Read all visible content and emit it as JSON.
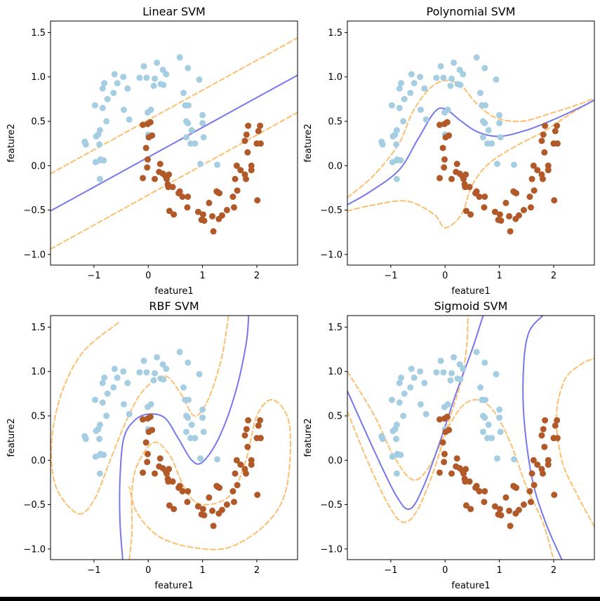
{
  "figure": {
    "colors": {
      "class0": "#a6cee3",
      "class1": "#b15928",
      "boundary": "#7777ee",
      "margin": "#fdbf6f"
    }
  },
  "chart_data": [
    {
      "type": "scatter",
      "title": "Linear SVM",
      "xlabel": "feature1",
      "ylabel": "feature2",
      "xlim": [
        -1.8,
        2.75
      ],
      "ylim": [
        -1.12,
        1.63
      ],
      "xticks": [
        -1,
        0,
        1,
        2
      ],
      "yticks": [
        -1.0,
        -0.5,
        0.0,
        0.5,
        1.0,
        1.5
      ],
      "xtick_labels": [
        "−1",
        "0",
        "1",
        "2"
      ],
      "ytick_labels": [
        "−1.0",
        "−0.5",
        "0.0",
        "0.5",
        "1.0",
        "1.5"
      ],
      "grid": false,
      "boundary": [
        [
          -1.8,
          -0.51
        ],
        [
          2.75,
          1.02
        ]
      ],
      "margins": [
        [
          [
            -1.8,
            -0.09
          ],
          [
            2.75,
            1.44
          ]
        ],
        [
          [
            -1.8,
            -0.94
          ],
          [
            2.75,
            0.6
          ]
        ]
      ]
    },
    {
      "type": "scatter",
      "title": "Polynomial SVM",
      "xlabel": "feature1",
      "ylabel": "feature2",
      "xlim": [
        -1.8,
        2.75
      ],
      "ylim": [
        -1.12,
        1.63
      ],
      "xticks": [
        -1,
        0,
        1,
        2
      ],
      "yticks": [
        -1.0,
        -0.5,
        0.0,
        0.5,
        1.0,
        1.5
      ],
      "xtick_labels": [
        "−1",
        "0",
        "1",
        "2"
      ],
      "ytick_labels": [
        "−1.0",
        "−0.5",
        "0.0",
        "0.5",
        "1.0",
        "1.5"
      ],
      "grid": false,
      "boundary": [
        [
          -1.8,
          -0.44
        ],
        [
          -1.4,
          -0.3
        ],
        [
          -0.85,
          -0.05
        ],
        [
          -0.5,
          0.3
        ],
        [
          -0.2,
          0.6
        ],
        [
          0.0,
          0.64
        ],
        [
          0.3,
          0.5
        ],
        [
          0.6,
          0.38
        ],
        [
          1.0,
          0.33
        ],
        [
          1.5,
          0.4
        ],
        [
          2.0,
          0.52
        ],
        [
          2.5,
          0.66
        ],
        [
          2.75,
          0.74
        ]
      ],
      "margins": [
        [
          [
            -1.8,
            -0.36
          ],
          [
            -1.3,
            -0.1
          ],
          [
            -0.85,
            0.25
          ],
          [
            -0.6,
            0.6
          ],
          [
            -0.3,
            0.86
          ],
          [
            0.0,
            0.96
          ],
          [
            0.3,
            0.9
          ],
          [
            0.55,
            0.72
          ],
          [
            0.9,
            0.55
          ],
          [
            1.4,
            0.5
          ],
          [
            2.0,
            0.6
          ],
          [
            2.5,
            0.7
          ],
          [
            2.75,
            0.76
          ]
        ],
        [
          [
            -1.8,
            -0.51
          ],
          [
            -1.3,
            -0.44
          ],
          [
            -0.7,
            -0.4
          ],
          [
            -0.2,
            -0.55
          ],
          [
            0.0,
            -0.7
          ],
          [
            0.3,
            -0.55
          ],
          [
            0.5,
            -0.22
          ],
          [
            0.8,
            0.02
          ],
          [
            1.3,
            0.22
          ],
          [
            1.8,
            0.38
          ],
          [
            2.3,
            0.58
          ],
          [
            2.75,
            0.74
          ]
        ]
      ]
    },
    {
      "type": "scatter",
      "title": "RBF SVM",
      "xlabel": "feature1",
      "ylabel": "feature2",
      "xlim": [
        -1.8,
        2.75
      ],
      "ylim": [
        -1.12,
        1.63
      ],
      "xticks": [
        -1,
        0,
        1,
        2
      ],
      "yticks": [
        -1.0,
        -0.5,
        0.0,
        0.5,
        1.0,
        1.5
      ],
      "xtick_labels": [
        "−1",
        "0",
        "1",
        "2"
      ],
      "ytick_labels": [
        "−1.0",
        "−0.5",
        "0.0",
        "0.5",
        "1.0",
        "1.5"
      ],
      "grid": false,
      "boundary": [
        [
          -0.47,
          -1.12
        ],
        [
          -0.52,
          -0.7
        ],
        [
          -0.52,
          -0.2
        ],
        [
          -0.45,
          0.25
        ],
        [
          -0.25,
          0.45
        ],
        [
          0.0,
          0.52
        ],
        [
          0.3,
          0.48
        ],
        [
          0.55,
          0.25
        ],
        [
          0.8,
          0.0
        ],
        [
          1.0,
          -0.02
        ],
        [
          1.3,
          0.25
        ],
        [
          1.6,
          0.75
        ],
        [
          1.8,
          1.3
        ],
        [
          1.85,
          1.63
        ]
      ],
      "margins": [
        [
          [
            -0.55,
            1.55
          ],
          [
            -1.2,
            1.22
          ],
          [
            -1.6,
            0.75
          ],
          [
            -1.78,
            0.2
          ],
          [
            -1.7,
            -0.3
          ],
          [
            -1.3,
            -0.6
          ],
          [
            -1.0,
            -0.45
          ],
          [
            -0.7,
            0.0
          ],
          [
            -0.4,
            0.45
          ],
          [
            -0.1,
            0.78
          ],
          [
            0.3,
            0.95
          ],
          [
            0.6,
            0.75
          ],
          [
            0.85,
            0.5
          ],
          [
            1.1,
            0.68
          ],
          [
            1.35,
            1.15
          ],
          [
            1.48,
            1.63
          ]
        ],
        [
          [
            -0.35,
            -1.12
          ],
          [
            -0.3,
            -0.8
          ],
          [
            -0.3,
            -0.35
          ],
          [
            -0.2,
            -0.05
          ],
          [
            0.1,
            0.2
          ],
          [
            0.4,
            0.05
          ],
          [
            0.7,
            -0.35
          ],
          [
            1.0,
            -0.5
          ],
          [
            1.5,
            -0.4
          ],
          [
            1.8,
            0.0
          ],
          [
            2.0,
            0.5
          ],
          [
            2.3,
            0.68
          ],
          [
            2.6,
            0.4
          ],
          [
            2.55,
            -0.3
          ],
          [
            2.2,
            -0.7
          ],
          [
            1.5,
            -0.98
          ],
          [
            0.8,
            -0.98
          ],
          [
            0.2,
            -0.86
          ],
          [
            -0.2,
            -0.6
          ],
          [
            -0.35,
            -0.3
          ]
        ]
      ]
    },
    {
      "type": "scatter",
      "title": "Sigmoid SVM",
      "xlabel": "feature1",
      "ylabel": "feature2",
      "xlim": [
        -1.8,
        2.75
      ],
      "ylim": [
        -1.12,
        1.63
      ],
      "xticks": [
        -1,
        0,
        1,
        2
      ],
      "yticks": [
        -1.0,
        -0.5,
        0.0,
        0.5,
        1.0,
        1.5
      ],
      "xtick_labels": [
        "−1",
        "0",
        "1",
        "2"
      ],
      "ytick_labels": [
        "−1.0",
        "−0.5",
        "0.0",
        "0.5",
        "1.0",
        "1.5"
      ],
      "grid": false,
      "boundary": [
        [
          [
            -1.8,
            0.78
          ],
          [
            -1.3,
            0.1
          ],
          [
            -0.9,
            -0.4
          ],
          [
            -0.65,
            -0.55
          ],
          [
            -0.4,
            -0.3
          ],
          [
            -0.1,
            0.2
          ],
          [
            0.2,
            0.75
          ],
          [
            0.5,
            1.25
          ],
          [
            0.7,
            1.63
          ]
        ],
        [
          [
            1.8,
            1.63
          ],
          [
            1.55,
            1.45
          ],
          [
            1.45,
            1.1
          ],
          [
            1.45,
            0.5
          ],
          [
            1.6,
            -0.2
          ],
          [
            1.85,
            -0.7
          ],
          [
            2.15,
            -1.12
          ]
        ]
      ],
      "margins": [
        [
          [
            -1.8,
            0.55
          ],
          [
            -1.4,
            -0.05
          ],
          [
            -1.0,
            -0.55
          ],
          [
            -0.75,
            -0.7
          ],
          [
            -0.5,
            -0.55
          ],
          [
            -0.2,
            -0.1
          ],
          [
            0.1,
            0.5
          ],
          [
            0.3,
            0.9
          ],
          [
            0.4,
            1.3
          ],
          [
            0.42,
            1.63
          ]
        ],
        [
          [
            -1.8,
            1.0
          ],
          [
            -1.3,
            0.5
          ],
          [
            -0.95,
            0.05
          ],
          [
            -0.6,
            -0.22
          ],
          [
            -0.3,
            -0.08
          ],
          [
            0.0,
            0.3
          ],
          [
            0.3,
            0.6
          ],
          [
            0.6,
            0.68
          ],
          [
            0.9,
            0.55
          ],
          [
            1.2,
            0.2
          ],
          [
            1.5,
            -0.3
          ],
          [
            1.8,
            -0.7
          ],
          [
            2.0,
            -1.12
          ]
        ],
        [
          [
            2.75,
            -0.75
          ],
          [
            2.4,
            -0.35
          ],
          [
            2.15,
            0.0
          ],
          [
            2.05,
            0.5
          ],
          [
            2.2,
            0.9
          ],
          [
            2.5,
            1.08
          ],
          [
            2.75,
            1.15
          ]
        ]
      ]
    }
  ],
  "points": {
    "class0": [
      [
        0.58,
        1.22
      ],
      [
        0.16,
        1.16
      ],
      [
        -0.08,
        1.12
      ],
      [
        0.27,
        1.08
      ],
      [
        0.73,
        1.1
      ],
      [
        -0.62,
        1.03
      ],
      [
        0.33,
        1.03
      ],
      [
        -0.46,
        1.0
      ],
      [
        -0.16,
        0.99
      ],
      [
        -0.03,
        0.99
      ],
      [
        0.12,
        0.98
      ],
      [
        0.94,
        0.97
      ],
      [
        -0.81,
        0.93
      ],
      [
        -0.57,
        0.93
      ],
      [
        0.23,
        0.92
      ],
      [
        -0.84,
        0.87
      ],
      [
        0.28,
        0.91
      ],
      [
        -0.38,
        0.87
      ],
      [
        0.1,
        0.9
      ],
      [
        -0.64,
        0.82
      ],
      [
        0.65,
        0.82
      ],
      [
        -0.75,
        0.75
      ],
      [
        -0.98,
        0.68
      ],
      [
        -0.84,
        0.65
      ],
      [
        0.74,
        0.68
      ],
      [
        0.68,
        0.68
      ],
      [
        0.05,
        0.63
      ],
      [
        -0.45,
        0.63
      ],
      [
        1.0,
        0.57
      ],
      [
        -0.01,
        0.6
      ],
      [
        -0.77,
        0.5
      ],
      [
        -0.35,
        0.52
      ],
      [
        0.7,
        0.5
      ],
      [
        0.73,
        0.48
      ],
      [
        1.0,
        0.48
      ],
      [
        -0.89,
        0.4
      ],
      [
        0.8,
        0.4
      ],
      [
        -0.96,
        0.33
      ],
      [
        0.0,
        0.35
      ],
      [
        0.7,
        0.32
      ],
      [
        1.02,
        0.32
      ],
      [
        -0.92,
        0.35
      ],
      [
        -1.17,
        0.27
      ],
      [
        0.86,
        0.25
      ],
      [
        -1.15,
        0.24
      ],
      [
        -0.9,
        0.24
      ],
      [
        0.78,
        0.25
      ],
      [
        0.96,
        0.02
      ],
      [
        1.27,
        0.01
      ],
      [
        -0.97,
        0.04
      ],
      [
        -0.89,
        0.06
      ],
      [
        -0.88,
        0.07
      ],
      [
        -0.82,
        0.06
      ],
      [
        -0.89,
        -0.15
      ]
    ],
    "class1": [
      [
        1.84,
        0.45
      ],
      [
        2.06,
        0.45
      ],
      [
        -0.1,
        0.46
      ],
      [
        -0.01,
        0.47
      ],
      [
        0.04,
        0.49
      ],
      [
        2.03,
        0.39
      ],
      [
        1.81,
        0.35
      ],
      [
        0.07,
        0.34
      ],
      [
        0.01,
        0.32
      ],
      [
        1.78,
        0.28
      ],
      [
        2.0,
        0.25
      ],
      [
        2.07,
        0.25
      ],
      [
        -0.04,
        0.2
      ],
      [
        1.83,
        0.15
      ],
      [
        -0.01,
        0.07
      ],
      [
        1.63,
        0.0
      ],
      [
        0.22,
        0.02
      ],
      [
        1.9,
        0.0
      ],
      [
        -0.02,
        -0.02
      ],
      [
        1.7,
        -0.05
      ],
      [
        0.2,
        -0.07
      ],
      [
        1.9,
        -0.05
      ],
      [
        1.78,
        -0.1
      ],
      [
        0.27,
        -0.09
      ],
      [
        0.38,
        -0.1
      ],
      [
        0.32,
        -0.12
      ],
      [
        -0.1,
        -0.14
      ],
      [
        0.12,
        -0.15
      ],
      [
        1.6,
        -0.15
      ],
      [
        0.34,
        -0.15
      ],
      [
        1.8,
        -0.15
      ],
      [
        0.36,
        -0.21
      ],
      [
        0.37,
        -0.24
      ],
      [
        0.45,
        -0.24
      ],
      [
        1.64,
        -0.28
      ],
      [
        1.26,
        -0.29
      ],
      [
        0.58,
        -0.29
      ],
      [
        1.31,
        -0.31
      ],
      [
        0.56,
        -0.31
      ],
      [
        1.28,
        -0.3
      ],
      [
        0.63,
        -0.35
      ],
      [
        1.56,
        -0.35
      ],
      [
        0.73,
        -0.35
      ],
      [
        2.01,
        -0.39
      ],
      [
        1.12,
        -0.42
      ],
      [
        0.72,
        -0.47
      ],
      [
        1.58,
        -0.47
      ],
      [
        0.39,
        -0.51
      ],
      [
        0.92,
        -0.52
      ],
      [
        1.45,
        -0.5
      ],
      [
        0.47,
        -0.55
      ],
      [
        1.01,
        -0.55
      ],
      [
        0.98,
        -0.61
      ],
      [
        1.3,
        -0.6
      ],
      [
        1.36,
        -0.56
      ],
      [
        1.18,
        -0.57
      ],
      [
        1.03,
        -0.62
      ],
      [
        1.2,
        -0.74
      ]
    ]
  }
}
